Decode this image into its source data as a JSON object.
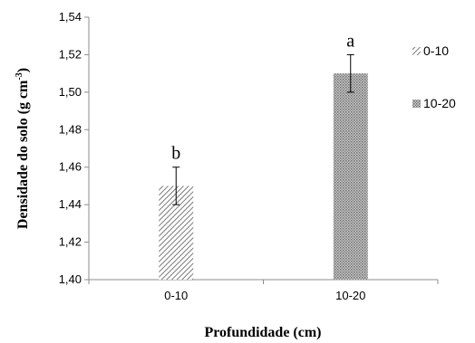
{
  "chart_data": {
    "type": "bar",
    "categories": [
      "0-10",
      "10-20"
    ],
    "values": [
      1.45,
      1.51
    ],
    "errors": [
      0.01,
      0.01
    ],
    "significance_letters": [
      "b",
      "a"
    ],
    "xlabel": "Profundidade (cm)",
    "ylabel_main": "Densidade do solo (g cm",
    "ylabel_sup": "-3",
    "ylabel_end": ")",
    "ylim": [
      1.4,
      1.54
    ],
    "yticks": [
      "1,40",
      "1,42",
      "1,44",
      "1,46",
      "1,48",
      "1,50",
      "1,52",
      "1,54"
    ],
    "grid": false,
    "legend_position": "right",
    "legend": [
      {
        "label": "0-10",
        "pattern": "diagonal-hatch"
      },
      {
        "label": "10-20",
        "pattern": "dots"
      }
    ]
  }
}
